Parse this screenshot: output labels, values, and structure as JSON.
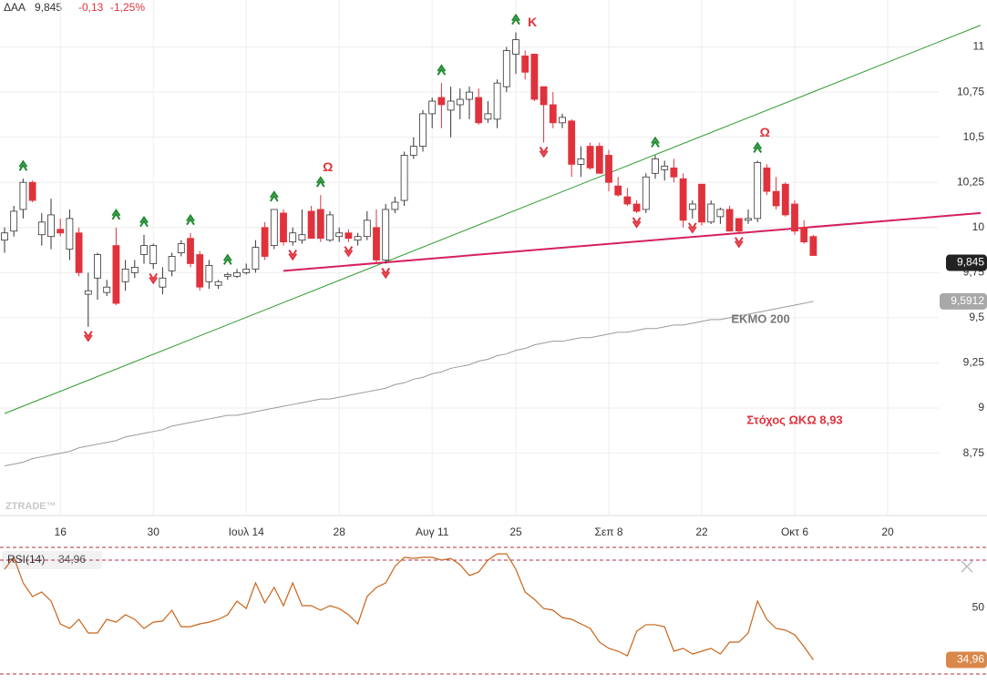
{
  "chart_data": [
    {
      "type": "candlestick",
      "title": "ΔΑΑ",
      "last": {
        "value": 9.845,
        "label": "9,845"
      },
      "change": {
        "value": -0.13,
        "label": "-0,13"
      },
      "change_pct": {
        "value": -1.25,
        "label": "-1,25%"
      },
      "watermark": "ZTRADE™",
      "up_color": "#ffffff",
      "down_color": "#e0323c",
      "categories": [
        null,
        null,
        null,
        null,
        null,
        null,
        "16",
        null,
        null,
        null,
        null,
        null,
        null,
        null,
        null,
        null,
        "30",
        null,
        null,
        null,
        null,
        null,
        null,
        null,
        null,
        null,
        "Ιουλ 14",
        null,
        null,
        null,
        null,
        null,
        null,
        null,
        null,
        null,
        "28",
        null,
        null,
        null,
        null,
        null,
        null,
        null,
        null,
        null,
        "Αυγ 11",
        null,
        null,
        null,
        null,
        null,
        null,
        null,
        null,
        "25",
        null,
        null,
        null,
        null,
        null,
        null,
        null,
        null,
        null,
        "Σεπ 8",
        null,
        null,
        null,
        null,
        null,
        null,
        null,
        null,
        null,
        "22",
        null,
        null,
        null,
        null,
        null,
        null,
        null,
        null,
        null,
        "Οκτ 6",
        null,
        null,
        null,
        null,
        null,
        null,
        null,
        null,
        null,
        "20",
        null,
        null,
        null,
        null,
        null,
        null,
        null,
        null,
        null,
        null
      ],
      "open": [
        9.93,
        9.98,
        10.1,
        10.25,
        9.96,
        9.95,
        9.99,
        9.88,
        9.97,
        9.63,
        9.72,
        9.64,
        9.9,
        9.7,
        9.75,
        9.85,
        9.8,
        9.67,
        9.76,
        9.86,
        9.94,
        9.85,
        9.7,
        9.68,
        9.73,
        9.73,
        9.75,
        9.77,
        10.0,
        9.9,
        10.08,
        9.92,
        9.93,
        10.09,
        10.1,
        9.93,
        9.95,
        9.97,
        9.93,
        9.95,
        10.0,
        9.82,
        10.1,
        10.15,
        10.4,
        10.45,
        10.63,
        10.72,
        10.65,
        10.68,
        10.71,
        10.72,
        10.6,
        10.6,
        10.78,
        10.96,
        10.95,
        10.96,
        10.78,
        10.68,
        10.58,
        10.59,
        10.35,
        10.45,
        10.45,
        10.4,
        10.23,
        10.17,
        10.13,
        10.1,
        10.3,
        10.32,
        10.33,
        10.27,
        10.1,
        10.24,
        10.03,
        10.06,
        10.1,
        10.05,
        10.04,
        10.05,
        10.33,
        10.2,
        10.24,
        10.13,
        10.0,
        9.95,
        null,
        null,
        null,
        null,
        null,
        null,
        null,
        null,
        null,
        null,
        null,
        null,
        null,
        null,
        null,
        null,
        null,
        null
      ],
      "high": [
        10.0,
        10.12,
        10.27,
        10.26,
        10.08,
        10.16,
        10.05,
        10.1,
        10.0,
        9.75,
        9.86,
        9.71,
        10.0,
        9.82,
        9.82,
        9.96,
        9.91,
        9.78,
        9.86,
        9.93,
        9.97,
        9.87,
        9.82,
        9.71,
        9.75,
        9.77,
        9.8,
        9.93,
        10.03,
        10.1,
        10.1,
        10.0,
        10.1,
        10.12,
        10.18,
        10.09,
        10.0,
        9.99,
        9.97,
        10.09,
        10.1,
        10.13,
        10.17,
        10.42,
        10.5,
        10.65,
        10.72,
        10.8,
        10.78,
        10.77,
        10.78,
        10.77,
        10.7,
        10.82,
        11.0,
        11.08,
        10.98,
        10.96,
        10.78,
        10.75,
        10.63,
        10.6,
        10.45,
        10.47,
        10.47,
        10.43,
        10.28,
        10.22,
        10.15,
        10.3,
        10.4,
        10.37,
        10.38,
        10.3,
        10.15,
        10.24,
        10.15,
        10.11,
        10.12,
        10.05,
        10.1,
        10.37,
        10.35,
        10.28,
        10.25,
        10.15,
        10.04,
        9.96,
        null,
        null,
        null,
        null,
        null,
        null,
        null,
        null,
        null,
        null,
        null,
        null,
        null,
        null,
        null,
        null,
        null,
        null
      ],
      "low": [
        9.86,
        9.95,
        10.05,
        10.14,
        9.9,
        9.88,
        9.95,
        9.82,
        9.73,
        9.45,
        9.6,
        9.62,
        9.57,
        9.65,
        9.72,
        9.8,
        9.77,
        9.63,
        9.73,
        9.84,
        9.78,
        9.65,
        9.66,
        9.66,
        9.71,
        9.72,
        9.74,
        9.75,
        9.82,
        9.88,
        9.9,
        9.9,
        9.91,
        9.94,
        9.92,
        9.92,
        9.92,
        9.92,
        9.9,
        9.93,
        9.8,
        9.8,
        10.08,
        10.12,
        10.38,
        10.42,
        10.55,
        10.55,
        10.5,
        10.6,
        10.6,
        10.57,
        10.58,
        10.55,
        10.75,
        10.85,
        10.82,
        10.7,
        10.47,
        10.55,
        10.55,
        10.28,
        10.28,
        10.32,
        10.3,
        10.2,
        10.17,
        10.12,
        10.08,
        10.08,
        10.27,
        10.26,
        10.25,
        10.0,
        10.05,
        10.01,
        10.02,
        10.02,
        9.98,
        9.97,
        10.02,
        10.03,
        10.18,
        10.1,
        10.06,
        9.96,
        9.91,
        9.845,
        null,
        null,
        null,
        null,
        null,
        null,
        null,
        null,
        null,
        null,
        null,
        null,
        null,
        null,
        null,
        null,
        null,
        null
      ],
      "close": [
        9.97,
        10.09,
        10.25,
        10.15,
        10.03,
        10.07,
        9.97,
        10.05,
        9.75,
        9.65,
        9.85,
        9.67,
        9.58,
        9.77,
        9.78,
        9.9,
        9.9,
        9.72,
        9.84,
        9.91,
        9.8,
        9.67,
        9.79,
        9.7,
        9.74,
        9.75,
        9.77,
        9.89,
        9.84,
        10.1,
        9.92,
        9.97,
        9.96,
        9.94,
        9.94,
        10.07,
        9.97,
        9.94,
        9.95,
        10.04,
        9.82,
        10.1,
        10.14,
        10.4,
        10.45,
        10.63,
        10.7,
        10.68,
        10.7,
        10.71,
        10.75,
        10.58,
        10.63,
        10.8,
        10.98,
        11.04,
        10.86,
        10.71,
        10.68,
        10.58,
        10.61,
        10.35,
        10.38,
        10.33,
        10.3,
        10.25,
        10.18,
        10.13,
        10.09,
        10.28,
        10.38,
        10.34,
        10.28,
        10.04,
        10.13,
        10.03,
        10.13,
        10.1,
        9.98,
        9.98,
        10.05,
        10.36,
        10.2,
        10.12,
        10.07,
        9.98,
        9.92,
        9.845,
        null,
        null,
        null,
        null,
        null,
        null,
        null,
        null,
        null,
        null,
        null,
        null,
        null,
        null,
        null,
        null,
        null,
        null
      ],
      "series": [
        {
          "name": "ΕΚΜΟ 200",
          "color": "#9a9a9a",
          "values": [
            8.68,
            8.69,
            8.7,
            8.72,
            8.73,
            8.74,
            8.75,
            8.76,
            8.78,
            8.79,
            8.8,
            8.81,
            8.82,
            8.84,
            8.85,
            8.86,
            8.87,
            8.88,
            8.9,
            8.91,
            8.92,
            8.93,
            8.94,
            8.95,
            8.96,
            8.96,
            8.97,
            8.98,
            8.99,
            9.0,
            9.01,
            9.02,
            9.03,
            9.04,
            9.05,
            9.05,
            9.06,
            9.07,
            9.08,
            9.09,
            9.1,
            9.11,
            9.13,
            9.14,
            9.16,
            9.17,
            9.19,
            9.2,
            9.22,
            9.23,
            9.24,
            9.26,
            9.27,
            9.29,
            9.3,
            9.32,
            9.33,
            9.35,
            9.36,
            9.37,
            9.37,
            9.38,
            9.39,
            9.39,
            9.4,
            9.41,
            9.42,
            9.42,
            9.43,
            9.44,
            9.44,
            9.45,
            9.46,
            9.46,
            9.47,
            9.48,
            9.49,
            9.49,
            9.5,
            9.51,
            9.52,
            9.53,
            9.54,
            9.55,
            9.56,
            9.57,
            9.58,
            9.5912,
            null,
            null,
            null,
            null,
            null,
            null,
            null,
            null,
            null,
            null,
            null,
            null,
            null,
            null,
            null,
            null,
            null,
            null
          ],
          "last": {
            "value": 9.5912,
            "label": "9,5912"
          }
        }
      ],
      "ylim": [
        8.41,
        11.26
      ],
      "yticks": [
        11,
        {
          "value": 10.75,
          "label": "10,75"
        },
        {
          "value": 10.5,
          "label": "10,5"
        },
        {
          "value": 10.25,
          "label": "10,25"
        },
        10,
        {
          "value": 9.75,
          "label": "9,75"
        },
        {
          "value": 9.5,
          "label": "9,5"
        },
        {
          "value": 9.25,
          "label": "9,25"
        },
        9,
        {
          "value": 8.75,
          "label": "8,75"
        }
      ],
      "grid": true,
      "trendlines": [
        {
          "color": "#2e9b2e",
          "from": [
            0,
            8.97
          ],
          "to": [
            105,
            11.12
          ]
        },
        {
          "color": "#d6205e",
          "from": [
            30,
            9.76
          ],
          "to": [
            105,
            10.08
          ]
        }
      ],
      "signals": {
        "up": [
          2,
          12,
          15,
          20,
          24,
          29,
          34,
          47,
          55,
          70,
          81
        ],
        "down": [
          9,
          16,
          31,
          37,
          41,
          58,
          68,
          74,
          79
        ],
        "up_color": "#1e8a2e",
        "down_color": "#e0323c"
      },
      "annotations": [
        {
          "text": "Κ",
          "index": 56
        },
        {
          "text": "Ω",
          "index": 34
        },
        {
          "text": "Ω",
          "index": 81
        },
        {
          "text": "Στόχος ΩΚΩ 8,93",
          "index": 85,
          "value": 8.93
        }
      ]
    },
    {
      "type": "line",
      "series": [
        {
          "name": "RSI(14)",
          "color": "#c8651b",
          "values": [
            66.8,
            71.0,
            62.0,
            57.2,
            58.8,
            55.6,
            47.6,
            46.0,
            49.2,
            44.4,
            44.4,
            49.2,
            48.2,
            50.8,
            49.2,
            46.0,
            48.2,
            48.6,
            52.4,
            46.6,
            46.6,
            47.6,
            48.2,
            49.2,
            50.8,
            55.6,
            53.0,
            62.0,
            55.0,
            60.4,
            54.0,
            62.0,
            54.0,
            54.0,
            52.4,
            54.0,
            53.0,
            50.8,
            47.6,
            57.2,
            60.4,
            62.0,
            67.8,
            71.0,
            70.6,
            71.0,
            71.0,
            70.0,
            70.6,
            68.4,
            64.6,
            65.8,
            70.0,
            72.2,
            72.2,
            66.8,
            58.8,
            56.2,
            53.0,
            52.4,
            49.8,
            49.2,
            47.6,
            46.0,
            41.2,
            39.0,
            38.0,
            36.4,
            45.0,
            47.3,
            47.3,
            46.6,
            38.0,
            39.0,
            37.0,
            38.0,
            39.0,
            37.0,
            41.2,
            41.2,
            44.4,
            55.6,
            49.2,
            46.0,
            45.4,
            43.8,
            39.6,
            34.96,
            null,
            null,
            null,
            null,
            null,
            null,
            null,
            null,
            null,
            null,
            null,
            null,
            null,
            null,
            null,
            null,
            null,
            null
          ],
          "last": {
            "value": 34.96,
            "label": "34,96"
          }
        }
      ],
      "ylim": [
        28.4,
        74.8
      ],
      "yticks": [
        50
      ],
      "levels": [
        70,
        30
      ]
    }
  ]
}
